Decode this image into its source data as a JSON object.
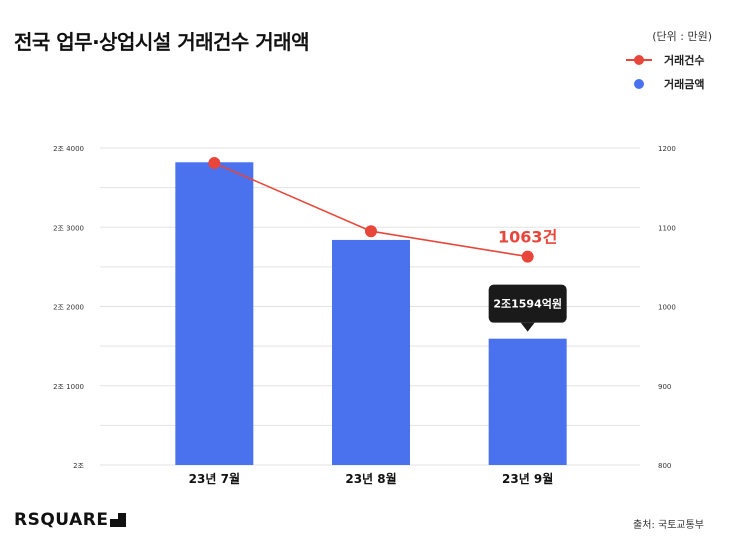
{
  "title": "전국 업무·상업시설 거래건수 거래액",
  "unit_note": "(단위 : 만원)",
  "source": "출처: 국토교통부",
  "logo": "RSQUARE",
  "colors": {
    "bar": "#4a72ee",
    "line": "#e8463a",
    "callout_bg": "#1a1a1a",
    "grid": "#e3e3e3"
  },
  "chart_data": {
    "type": "bar+line",
    "categories": [
      "23년 7월",
      "23년 8월",
      "23년 9월"
    ],
    "series": [
      {
        "name": "거래금액",
        "type": "bar",
        "axis": "left",
        "values": [
          23820,
          22840,
          21594
        ]
      },
      {
        "name": "거래건수",
        "type": "line",
        "axis": "right",
        "values": [
          1181,
          1095,
          1063
        ]
      }
    ],
    "left_axis": {
      "ticks": [
        20000,
        21000,
        22000,
        23000,
        24000
      ],
      "tick_labels": [
        "2조",
        "2조 1000",
        "2조 2000",
        "2조 3000",
        "2조 4000"
      ],
      "range": [
        20000,
        24000
      ]
    },
    "right_axis": {
      "ticks": [
        800,
        900,
        1000,
        1100,
        1200
      ],
      "tick_labels": [
        "800",
        "900",
        "1000",
        "1100",
        "1200"
      ],
      "range": [
        800,
        1200
      ]
    },
    "annotations": {
      "line_last_label": "1063건",
      "bar_last_label": "2조1594억원"
    },
    "grid": true,
    "legend_position": "top-right"
  }
}
